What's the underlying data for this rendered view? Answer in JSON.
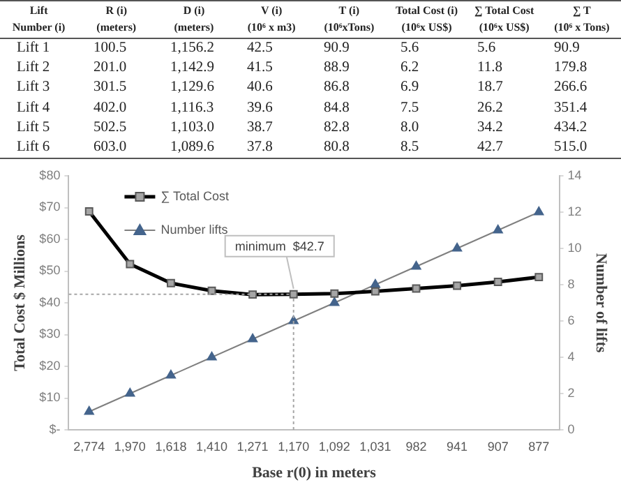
{
  "chart_data": [
    {
      "type": "other",
      "annotations": [
        "Lift\nNumber (i)",
        "R (i)\n(meters)",
        "D (i)\n(meters)",
        "V (i)\n(10⁶ x m3)",
        "T (i)\n(10⁶xTons)",
        "Total Cost (i)\n(10⁶x US$)",
        "∑ Total Cost\n(10⁶x US$)",
        "∑ T\n(10⁶ x Tons)",
        "Lift 1",
        "100.5",
        "1,156.2",
        "42.5",
        "90.9",
        "5.6",
        "5.6",
        "90.9",
        "Lift 2",
        "201.0",
        "1,142.9",
        "41.5",
        "88.9",
        "6.2",
        "11.8",
        "179.8",
        "Lift 3",
        "301.5",
        "1,129.6",
        "40.6",
        "86.8",
        "6.9",
        "18.7",
        "266.6",
        "Lift 4",
        "402.0",
        "1,116.3",
        "39.6",
        "84.8",
        "7.5",
        "26.2",
        "351.4",
        "Lift 5",
        "502.5",
        "1,103.0",
        "38.7",
        "82.8",
        "8.0",
        "34.2",
        "434.2",
        "Lift 6",
        "603.0",
        "1,089.6",
        "37.8",
        "80.8",
        "8.5",
        "42.7",
        "515.0"
      ]
    },
    {
      "type": "line",
      "xlabel": "Base r(0) in meters",
      "ylabel": "Total Cost $ Millions",
      "y2label": "Number of lifts",
      "categories": [
        "2,774",
        "1,970",
        "1,618",
        "1,410",
        "1,271",
        "1,170",
        "1,092",
        "1,031",
        "982",
        "941",
        "907",
        "877"
      ],
      "series": [
        {
          "name": "∑ Total Cost",
          "color": "#000000",
          "marker": "square",
          "values": [
            68.8,
            52.2,
            46.2,
            43.8,
            42.6,
            42.7,
            42.9,
            43.6,
            44.5,
            45.4,
            46.6,
            48.1
          ]
        },
        {
          "name": "Number lifts",
          "color": "#44648c",
          "marker": "triangle",
          "axis": "y2",
          "values": [
            1,
            2,
            3,
            4,
            5,
            6,
            7,
            8,
            9,
            10,
            11,
            12
          ]
        }
      ],
      "ylim": [
        0,
        80
      ],
      "yticks": [
        {
          "value": 0,
          "label": "$-"
        },
        {
          "value": 10,
          "label": "$10"
        },
        {
          "value": 20,
          "label": "$20"
        },
        {
          "value": 30,
          "label": "$30"
        },
        {
          "value": 40,
          "label": "$40"
        },
        {
          "value": 50,
          "label": "$50"
        },
        {
          "value": 60,
          "label": "$60"
        },
        {
          "value": 70,
          "label": "$70"
        },
        {
          "value": 80,
          "label": "$80"
        }
      ],
      "y2lim": [
        0,
        14
      ],
      "y2ticks": [
        0,
        2,
        4,
        6,
        8,
        10,
        12,
        14
      ],
      "ref_lines": [
        {
          "axis": "y",
          "value": 42.7,
          "color": "#a6a6a6",
          "line_style": "dotted"
        },
        {
          "axis": "x",
          "value": "1,170",
          "color": "#a6a6a6",
          "line_style": "dotted"
        }
      ],
      "annotations": [
        {
          "text": "minimum  $42.7",
          "x": "1,170",
          "y": 42.7
        }
      ],
      "grid": false,
      "legend": "top left"
    }
  ]
}
